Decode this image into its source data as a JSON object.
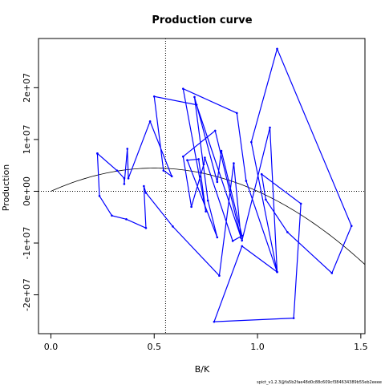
{
  "chart_data": {
    "type": "line",
    "title": "Production curve",
    "xlabel": "B/K",
    "ylabel": "Production",
    "xlim": [
      -0.06,
      1.52
    ],
    "ylim": [
      -27500000.0,
      29500000.0
    ],
    "x_ticks": [
      0,
      0.5,
      1,
      1.5
    ],
    "x_tick_labels": [
      "0.0",
      "0.5",
      "1.0",
      "1.5"
    ],
    "y_ticks": [
      -20000000.0,
      -10000000.0,
      0,
      10000000.0,
      20000000.0
    ],
    "y_tick_labels": [
      "-2e+07",
      "-1e+07",
      "0e+00",
      "1e+07",
      "2e+07"
    ],
    "reference_lines": {
      "bmsy_over_k": 0.555,
      "production_zero": 0
    },
    "theoretical_curve": {
      "k": 17900000.0,
      "x_max": 1.52
    },
    "observed": {
      "color": "#0000ff",
      "points": [
        [
          0.225,
          7300000.0
        ],
        [
          0.235,
          -900000.0
        ],
        [
          0.295,
          -4700000.0
        ],
        [
          0.365,
          -5400000.0
        ],
        [
          0.46,
          -7100000.0
        ],
        [
          0.45,
          1000000.0
        ],
        [
          0.46,
          -300000.0
        ],
        [
          0.59,
          -6800000.0
        ],
        [
          0.815,
          -16300000.0
        ],
        [
          0.885,
          5400000.0
        ],
        [
          0.92,
          -9000000.0
        ],
        [
          0.795,
          11700000.0
        ],
        [
          0.64,
          6700000.0
        ],
        [
          0.68,
          -3000000.0
        ],
        [
          0.74,
          5200000.0
        ],
        [
          0.745,
          6500000.0
        ],
        [
          0.88,
          -9600000.0
        ],
        [
          0.925,
          -8600000.0
        ],
        [
          0.825,
          7800000.0
        ],
        [
          0.805,
          1800000.0
        ],
        [
          0.695,
          18200000.0
        ],
        [
          0.76,
          -1800000.0
        ],
        [
          0.805,
          -8900000.0
        ],
        [
          0.66,
          6000000.0
        ],
        [
          0.715,
          6200000.0
        ],
        [
          0.75,
          -3900000.0
        ],
        [
          0.64,
          19800000.0
        ],
        [
          0.9,
          15100000.0
        ],
        [
          0.945,
          2000000.0
        ],
        [
          1.095,
          -15600000.0
        ],
        [
          0.97,
          9500000.0
        ],
        [
          1.095,
          27500000.0
        ],
        [
          1.455,
          -6700000.0
        ],
        [
          1.36,
          -15800000.0
        ],
        [
          1.145,
          -7900000.0
        ],
        [
          1.04,
          -1600000.0
        ],
        [
          1.02,
          3300000.0
        ],
        [
          1.21,
          -2400000.0
        ],
        [
          1.175,
          -24500000.0
        ],
        [
          0.79,
          -25200000.0
        ],
        [
          0.925,
          -10600000.0
        ],
        [
          1.095,
          -15600000.0
        ],
        [
          1.06,
          12300000.0
        ],
        [
          0.925,
          -9500000.0
        ],
        [
          0.705,
          16700000.0
        ],
        [
          0.5,
          18300000.0
        ],
        [
          0.545,
          4000000.0
        ],
        [
          0.585,
          2900000.0
        ],
        [
          0.48,
          13500000.0
        ],
        [
          0.375,
          2500000.0
        ],
        [
          0.37,
          8200000.0
        ],
        [
          0.355,
          1400000.0
        ],
        [
          0.355,
          2500000.0
        ],
        [
          0.32,
          4000000.0
        ],
        [
          0.225,
          7300000.0
        ]
      ]
    },
    "footer_text": "spict_v1.2.3@fa5b2fae48d0c88c609cf384634389b55eb2eeee"
  }
}
